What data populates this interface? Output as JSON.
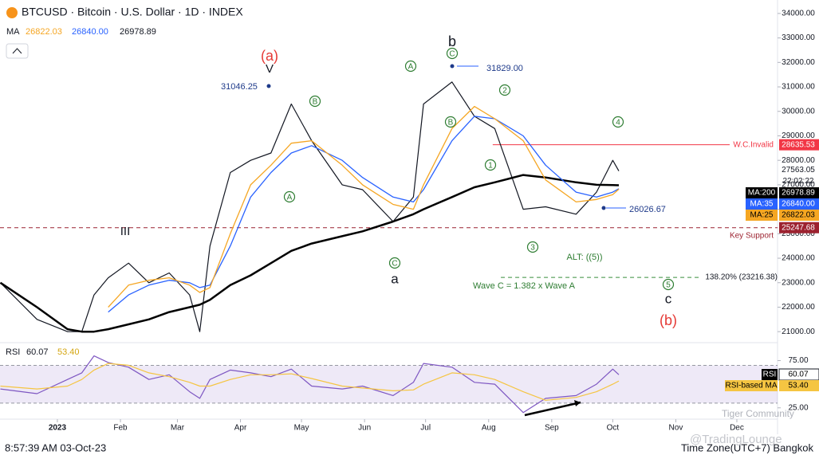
{
  "chart_data": [
    {
      "type": "line",
      "title": "BTCUSD · Bitcoin · U.S. Dollar · 1D · INDEX",
      "indicator_label": "MA",
      "countdown": "22:02:22",
      "x": [
        -28,
        -10,
        5,
        12,
        18,
        25,
        35,
        45,
        55,
        65,
        70,
        75,
        85,
        95,
        105,
        115,
        125,
        140,
        150,
        165,
        175,
        180,
        194,
        205,
        215,
        229,
        240,
        255,
        265,
        273,
        276
      ],
      "xlim": [
        -28.2,
        354
      ],
      "xticks": [
        {
          "value": 0,
          "label": "2023"
        },
        {
          "value": 31,
          "label": "Feb"
        },
        {
          "value": 59,
          "label": "Mar"
        },
        {
          "value": 90,
          "label": "Apr"
        },
        {
          "value": 120,
          "label": "May"
        },
        {
          "value": 151,
          "label": "Jun"
        },
        {
          "value": 181,
          "label": "Jul"
        },
        {
          "value": 212,
          "label": "Aug"
        },
        {
          "value": 243,
          "label": "Sep"
        },
        {
          "value": 273,
          "label": "Oct"
        },
        {
          "value": 304,
          "label": "Nov"
        },
        {
          "value": 334,
          "label": "Dec"
        }
      ],
      "ylim": [
        20550,
        34550
      ],
      "yticks": [
        {
          "value": 21000,
          "label": "21000.00"
        },
        {
          "value": 22000,
          "label": "22000.00"
        },
        {
          "value": 23000,
          "label": "23000.00"
        },
        {
          "value": 24000,
          "label": "24000.00"
        },
        {
          "value": 25000,
          "label": "25000.00"
        },
        {
          "value": 26000,
          "label": "26000.00"
        },
        {
          "value": 27000,
          "label": "27000.00"
        },
        {
          "value": 28000,
          "label": "28000.00"
        },
        {
          "value": 29000,
          "label": "29000.00"
        },
        {
          "value": 30000,
          "label": "30000.00"
        },
        {
          "value": 31000,
          "label": "31000.00"
        },
        {
          "value": 32000,
          "label": "32000.00"
        },
        {
          "value": 33000,
          "label": "33000.00"
        },
        {
          "value": 34000,
          "label": "34000.00"
        }
      ],
      "series": [
        {
          "name": "BTCUSD",
          "color": "#131722",
          "values": [
            23000,
            21500,
            21000,
            21000,
            22500,
            23200,
            23800,
            23000,
            23400,
            22500,
            21000,
            24500,
            27500,
            28000,
            28300,
            30300,
            28800,
            27000,
            26800,
            25500,
            26500,
            30300,
            31200,
            29800,
            29300,
            26000,
            26100,
            25800,
            26700,
            28000,
            27563.05
          ]
        },
        {
          "name": "MA:200",
          "color": "#000000",
          "width": 2.5,
          "values": [
            23000,
            22000,
            21100,
            21000,
            21000,
            21100,
            21300,
            21500,
            21800,
            22000,
            22100,
            22300,
            22900,
            23300,
            23800,
            24300,
            24600,
            24900,
            25100,
            25500,
            25800,
            26000,
            26500,
            26900,
            27100,
            27400,
            27300,
            27100,
            27000,
            26990,
            26978.89
          ]
        },
        {
          "name": "MA:35",
          "color": "#2962ff",
          "width": 1.3,
          "values": [
            null,
            null,
            null,
            null,
            null,
            21800,
            22500,
            22900,
            23100,
            23000,
            22800,
            22900,
            24500,
            26500,
            27500,
            28300,
            28600,
            28000,
            27300,
            26500,
            26300,
            26800,
            28800,
            29800,
            29700,
            29000,
            27800,
            26700,
            26500,
            26700,
            26840
          ],
          "value_labels": [
            null,
            null,
            null,
            null,
            null,
            null,
            null,
            null,
            null,
            null,
            null,
            null,
            null,
            null,
            null,
            null,
            null,
            null,
            null,
            null,
            null,
            null,
            null,
            null,
            null,
            null,
            null,
            null,
            null,
            null,
            "26840.00"
          ]
        },
        {
          "name": "MA:25",
          "color": "#f5a623",
          "width": 1.3,
          "values": [
            null,
            null,
            null,
            null,
            null,
            22000,
            22900,
            23100,
            23200,
            22900,
            22600,
            22800,
            25000,
            27000,
            27800,
            28700,
            28800,
            27800,
            27000,
            26200,
            26000,
            27000,
            29300,
            30200,
            29700,
            28800,
            27200,
            26300,
            26400,
            26600,
            26822.03
          ]
        }
      ],
      "levels": [
        {
          "name": "W.C.Invalid",
          "value": 28635.53,
          "color": "#f23645"
        },
        {
          "name": "Key Support",
          "value": 25247.68,
          "color": "#9c2230",
          "dashed": true
        },
        {
          "name": "138.20% (23216.38)",
          "value": 23216.38,
          "color": "#388e3c",
          "dashed": true
        }
      ],
      "annotations": [
        "(a)",
        "V",
        "b",
        "a",
        "c",
        "(b)",
        "III",
        "31046.25",
        "31829.00",
        "26026.67",
        "ALT: ((5))",
        "Wave C = 1.382 x Wave A",
        "A",
        "C",
        "B",
        "A",
        "B",
        "C",
        "2",
        "1",
        "3",
        "4",
        "5"
      ]
    },
    {
      "type": "line",
      "title": "RSI",
      "x": [
        -28,
        -10,
        5,
        12,
        18,
        25,
        35,
        45,
        55,
        65,
        70,
        75,
        85,
        95,
        105,
        115,
        125,
        140,
        150,
        165,
        175,
        180,
        194,
        205,
        215,
        229,
        240,
        255,
        265,
        273,
        276
      ],
      "ylim": [
        13,
        94
      ],
      "yticks": [
        {
          "value": 75,
          "label": "75.00"
        },
        {
          "value": 25,
          "label": "25.00"
        }
      ],
      "band": [
        30,
        70
      ],
      "series": [
        {
          "name": "RSI",
          "color": "#7e57c2",
          "values": [
            45,
            40,
            55,
            62,
            80,
            73,
            68,
            55,
            60,
            42,
            35,
            55,
            65,
            62,
            58,
            66,
            48,
            45,
            48,
            38,
            52,
            72,
            68,
            52,
            50,
            20,
            35,
            38,
            50,
            66,
            60.07
          ]
        },
        {
          "name": "RSI-based MA",
          "color": "#f5c542",
          "values": [
            48,
            45,
            48,
            55,
            65,
            72,
            70,
            62,
            58,
            52,
            48,
            48,
            55,
            60,
            60,
            61,
            56,
            48,
            46,
            43,
            44,
            50,
            62,
            60,
            55,
            42,
            33,
            36,
            42,
            50,
            53.4
          ],
          "value_labels": [
            null,
            null,
            null,
            null,
            null,
            null,
            null,
            null,
            null,
            null,
            null,
            null,
            null,
            null,
            null,
            null,
            null,
            null,
            null,
            null,
            null,
            null,
            null,
            null,
            null,
            null,
            null,
            null,
            null,
            null,
            "53.40"
          ]
        }
      ]
    }
  ],
  "footer": {
    "time": "8:57:39 AM 03-Oct-23",
    "timezone": "Time Zone(UTC+7) Bangkok"
  },
  "watermarks": [
    "Tiger Community",
    "@TradingLounge"
  ]
}
